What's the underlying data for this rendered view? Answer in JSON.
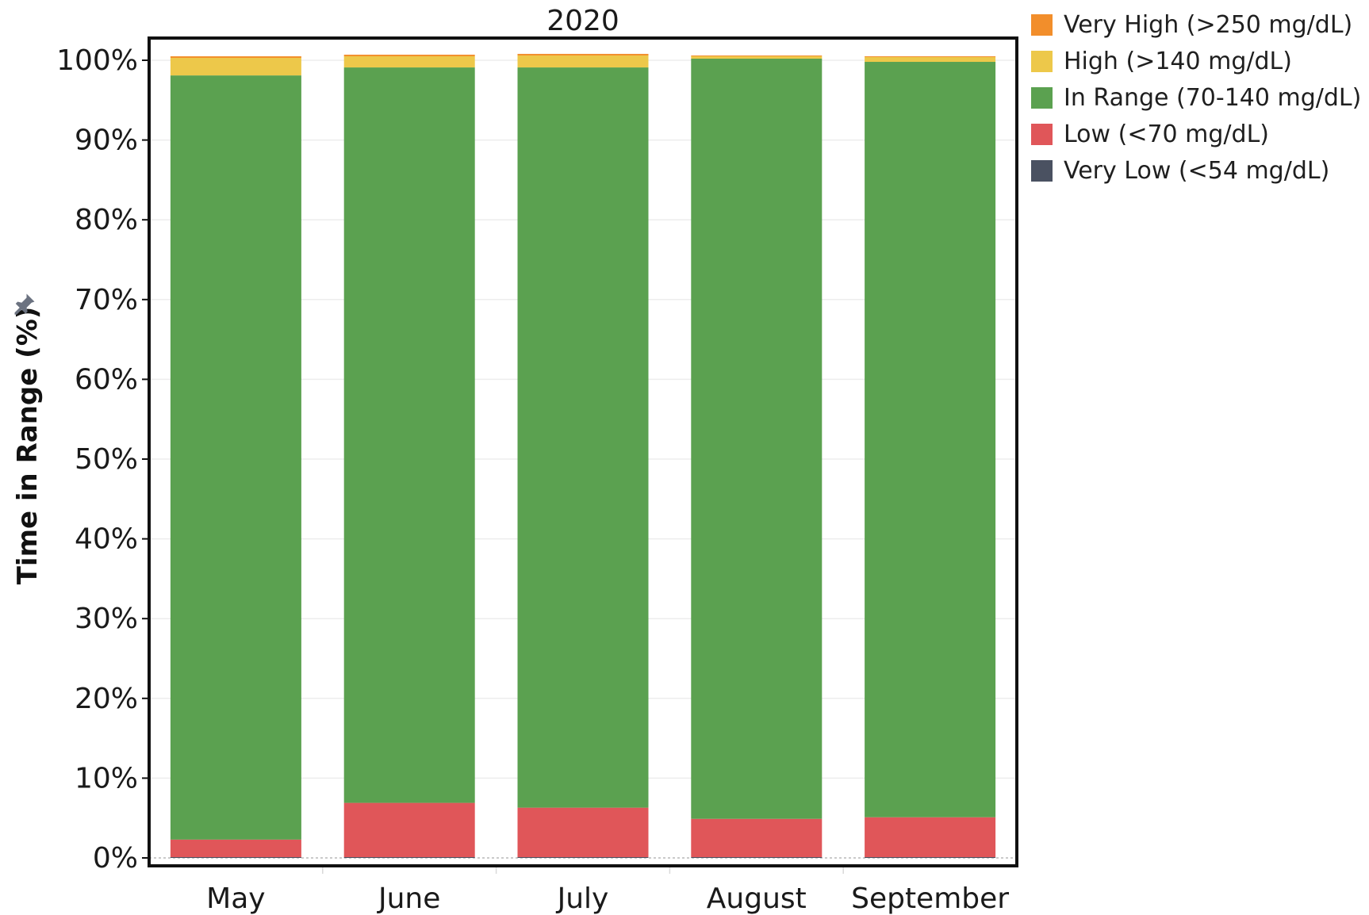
{
  "chart_data": {
    "type": "bar",
    "stacked": true,
    "title": "2020",
    "ylabel": "Time in Range (%)",
    "xlabel": "",
    "ylim": [
      0,
      100
    ],
    "y_ticks": [
      "0%",
      "10%",
      "20%",
      "30%",
      "40%",
      "50%",
      "60%",
      "70%",
      "80%",
      "90%",
      "100%"
    ],
    "categories": [
      "May",
      "June",
      "July",
      "August",
      "September"
    ],
    "series": [
      {
        "name": "Very Low (<54 mg/dL)",
        "color": "#4a5161",
        "values": [
          0.1,
          0.1,
          0.1,
          0.1,
          0.1
        ]
      },
      {
        "name": "Low (<70 mg/dL)",
        "color": "#e05659",
        "values": [
          2.2,
          6.8,
          6.2,
          4.8,
          5.0
        ]
      },
      {
        "name": "In Range (70-140 mg/dL)",
        "color": "#5ba150",
        "values": [
          95.8,
          92.2,
          92.8,
          95.3,
          94.7
        ]
      },
      {
        "name": "High (>140 mg/dL)",
        "color": "#edc84a",
        "values": [
          2.2,
          1.4,
          1.5,
          0.3,
          0.6
        ]
      },
      {
        "name": "Very High (>250 mg/dL)",
        "color": "#f28e2b",
        "values": [
          0.2,
          0.2,
          0.2,
          0.1,
          0.1
        ]
      }
    ],
    "legend_order": [
      "Very High (>250 mg/dL)",
      "High (>140 mg/dL)",
      "In Range (70-140 mg/dL)",
      "Low (<70 mg/dL)",
      "Very Low (<54 mg/dL)"
    ],
    "legend_position": "top-right",
    "grid": true
  },
  "icons": {
    "axis_pin": "pin-icon"
  }
}
